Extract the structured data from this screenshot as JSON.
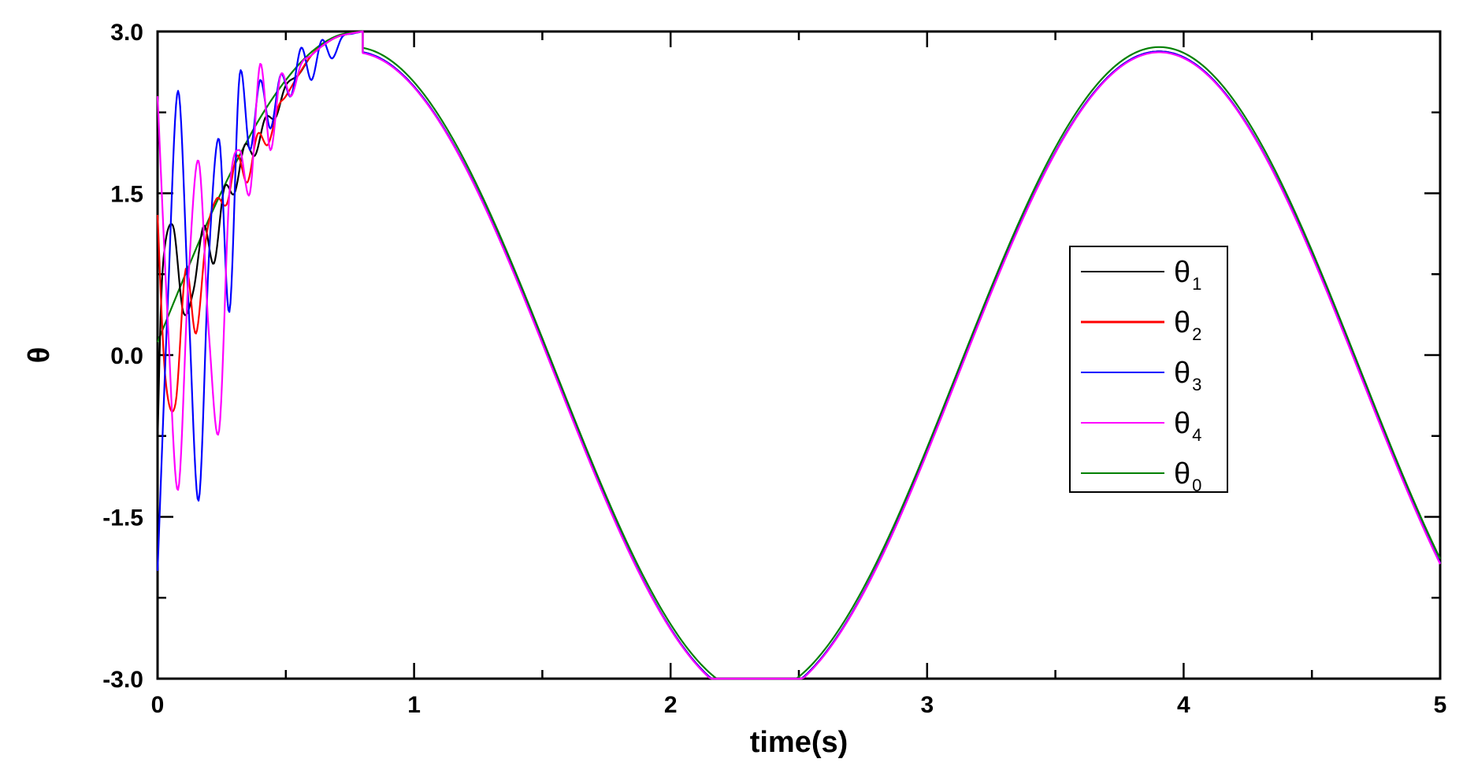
{
  "chart_data": {
    "type": "line",
    "title": "",
    "xlabel": "time(s)",
    "ylabel": "θ",
    "xlim": [
      0,
      5
    ],
    "ylim": [
      -3.0,
      3.0
    ],
    "x_ticks": [
      0,
      1,
      2,
      3,
      4,
      5
    ],
    "x_tick_labels": [
      "0",
      "1",
      "2",
      "3",
      "4",
      "5"
    ],
    "x_minor_step": 0.5,
    "y_ticks": [
      3.0,
      1.5,
      0.0,
      -1.5,
      -3.0
    ],
    "y_tick_labels": [
      "3.0",
      "1.5",
      "0.0",
      "-1.5",
      "-3.0"
    ],
    "y_minor_step": 0.75,
    "grid": false,
    "legend_position": "center-right",
    "reference_signal": {
      "amplitude": 3.0,
      "period_s": 3.14,
      "phase_rad": 0.04
    },
    "series": [
      {
        "name": "θ",
        "subscript": "1",
        "color": "#000000",
        "x": [
          0,
          0.02,
          0.06,
          0.1,
          0.14,
          0.18,
          0.22,
          0.26,
          0.3,
          0.34,
          0.38,
          0.42,
          0.46,
          0.5,
          0.55,
          0.6,
          0.65,
          0.7,
          0.75,
          0.8,
          1.0,
          1.5,
          2.0,
          2.36,
          3.0,
          3.5,
          3.93,
          4.5,
          5.0
        ],
        "y": [
          -0.8,
          0.8,
          1.2,
          0.4,
          0.6,
          1.2,
          0.85,
          1.55,
          1.5,
          1.95,
          1.85,
          2.2,
          2.2,
          2.5,
          2.6,
          2.78,
          2.88,
          2.95,
          2.98,
          3.0,
          2.48,
          -0.2,
          -2.8,
          -3.0,
          -1.23,
          1.63,
          3.0,
          1.4,
          -1.6
        ]
      },
      {
        "name": "θ",
        "subscript": "2",
        "color": "#ff0000",
        "x": [
          0,
          0.03,
          0.07,
          0.11,
          0.15,
          0.19,
          0.23,
          0.27,
          0.31,
          0.35,
          0.39,
          0.43,
          0.47,
          0.5,
          0.55,
          0.6,
          0.65,
          0.7,
          0.75,
          0.8,
          1.0,
          1.5,
          2.0,
          2.36,
          3.0,
          3.5,
          3.93,
          4.5,
          5.0
        ],
        "y": [
          1.3,
          -0.2,
          -0.45,
          0.8,
          0.2,
          1.1,
          1.45,
          1.4,
          1.85,
          1.6,
          2.05,
          1.95,
          2.3,
          2.4,
          2.6,
          2.78,
          2.88,
          2.95,
          2.98,
          3.0,
          2.48,
          -0.2,
          -2.8,
          -3.0,
          -1.23,
          1.63,
          3.0,
          1.4,
          -1.6
        ]
      },
      {
        "name": "θ",
        "subscript": "3",
        "color": "#0000ff",
        "x": [
          0,
          0.04,
          0.08,
          0.12,
          0.16,
          0.2,
          0.24,
          0.28,
          0.32,
          0.36,
          0.4,
          0.44,
          0.48,
          0.52,
          0.56,
          0.6,
          0.64,
          0.68,
          0.72,
          0.76,
          0.8,
          1.0,
          1.5,
          2.0,
          2.36,
          3.0,
          3.5,
          3.93,
          4.5,
          5.0
        ],
        "y": [
          -2.0,
          0.5,
          2.45,
          0.5,
          -1.35,
          0.9,
          2.0,
          0.4,
          2.6,
          1.9,
          2.55,
          2.1,
          2.6,
          2.4,
          2.85,
          2.55,
          2.92,
          2.75,
          2.95,
          2.98,
          3.0,
          2.48,
          -0.2,
          -2.8,
          -3.0,
          -1.23,
          1.63,
          3.0,
          1.4,
          -1.6
        ]
      },
      {
        "name": "θ",
        "subscript": "4",
        "color": "#ff00ff",
        "x": [
          0,
          0.04,
          0.08,
          0.12,
          0.16,
          0.2,
          0.24,
          0.28,
          0.32,
          0.36,
          0.4,
          0.44,
          0.48,
          0.52,
          0.56,
          0.6,
          0.65,
          0.7,
          0.75,
          0.8,
          1.0,
          1.5,
          2.0,
          2.36,
          3.0,
          3.5,
          3.93,
          4.5,
          5.0
        ],
        "y": [
          2.4,
          0.3,
          -1.25,
          0.7,
          1.8,
          0.2,
          -0.7,
          1.5,
          1.9,
          1.5,
          2.7,
          1.9,
          2.6,
          2.4,
          2.7,
          2.78,
          2.88,
          2.95,
          2.98,
          3.0,
          2.44,
          -0.25,
          -2.78,
          -3.0,
          -1.28,
          1.58,
          3.0,
          1.45,
          -1.55
        ]
      },
      {
        "name": "θ",
        "subscript": "0",
        "color": "#008000",
        "x": [
          0,
          0.1,
          0.2,
          0.3,
          0.4,
          0.5,
          0.6,
          0.7,
          0.8,
          1.0,
          1.2,
          1.4,
          1.6,
          1.8,
          2.0,
          2.2,
          2.36,
          2.6,
          2.8,
          3.0,
          3.2,
          3.4,
          3.6,
          3.8,
          3.93,
          4.2,
          4.4,
          4.6,
          4.8,
          5.0
        ],
        "y": [
          0.12,
          0.7,
          1.26,
          1.76,
          2.2,
          2.55,
          2.81,
          2.96,
          3.0,
          2.48,
          1.66,
          0.53,
          -0.65,
          -1.75,
          -2.58,
          -2.96,
          -3.0,
          -2.71,
          -2.16,
          -1.23,
          -0.08,
          1.03,
          2.05,
          2.75,
          3.0,
          2.7,
          1.97,
          0.95,
          -0.25,
          -1.62
        ]
      }
    ]
  }
}
